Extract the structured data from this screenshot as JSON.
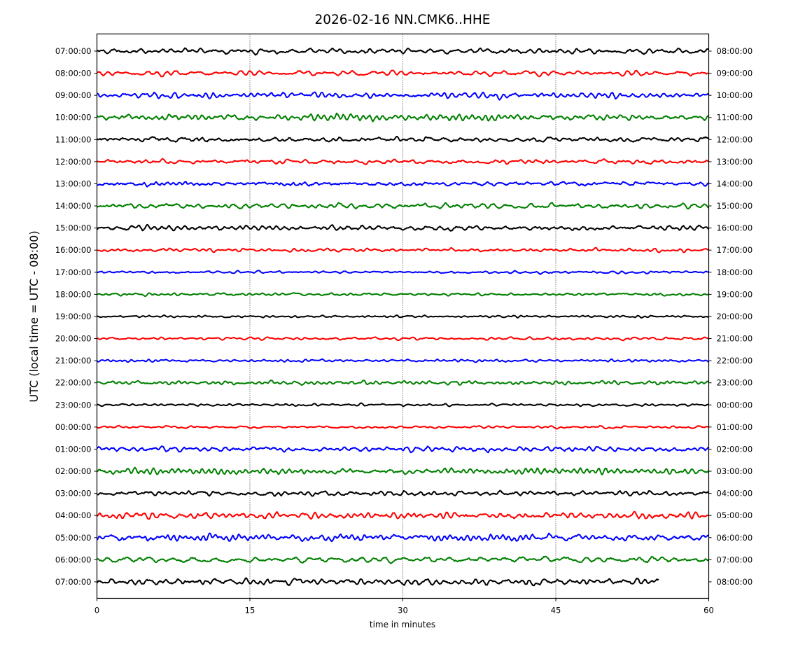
{
  "chart_data": {
    "type": "line",
    "title": "2026-02-16 NN.CMK6..HHE",
    "xlabel": "time in minutes",
    "ylabel": "UTC (local time = UTC - 08:00)",
    "xlim": [
      0,
      60
    ],
    "xticks": [
      "0",
      "15",
      "30",
      "45",
      "60"
    ],
    "xtick_values": [
      0,
      15,
      30,
      45,
      60
    ],
    "vertical_grid_at_minutes": [
      15,
      30,
      45
    ],
    "grid_style": "dotted",
    "left_labels": [
      "07:00:00",
      "08:00:00",
      "09:00:00",
      "10:00:00",
      "11:00:00",
      "12:00:00",
      "13:00:00",
      "14:00:00",
      "15:00:00",
      "16:00:00",
      "17:00:00",
      "18:00:00",
      "19:00:00",
      "20:00:00",
      "21:00:00",
      "22:00:00",
      "23:00:00",
      "00:00:00",
      "01:00:00",
      "02:00:00",
      "03:00:00",
      "04:00:00",
      "05:00:00",
      "06:00:00",
      "07:00:00"
    ],
    "right_labels": [
      "08:00:00",
      "09:00:00",
      "10:00:00",
      "11:00:00",
      "12:00:00",
      "13:00:00",
      "14:00:00",
      "15:00:00",
      "16:00:00",
      "17:00:00",
      "18:00:00",
      "19:00:00",
      "20:00:00",
      "21:00:00",
      "22:00:00",
      "23:00:00",
      "00:00:00",
      "01:00:00",
      "02:00:00",
      "03:00:00",
      "04:00:00",
      "05:00:00",
      "06:00:00",
      "07:00:00",
      "08:00:00"
    ],
    "trace_colors": [
      "#000000",
      "#ff0000",
      "#0000ff",
      "#008000"
    ],
    "traces": [
      {
        "amplitude": 0.9,
        "end_minute": 60
      },
      {
        "amplitude": 0.8,
        "end_minute": 60
      },
      {
        "amplitude": 0.9,
        "end_minute": 60
      },
      {
        "amplitude": 1.0,
        "end_minute": 60
      },
      {
        "amplitude": 0.9,
        "end_minute": 60
      },
      {
        "amplitude": 0.8,
        "end_minute": 60
      },
      {
        "amplitude": 0.9,
        "end_minute": 60
      },
      {
        "amplitude": 0.9,
        "end_minute": 60
      },
      {
        "amplitude": 0.9,
        "end_minute": 60
      },
      {
        "amplitude": 0.6,
        "end_minute": 60
      },
      {
        "amplitude": 0.5,
        "end_minute": 60
      },
      {
        "amplitude": 0.5,
        "end_minute": 60
      },
      {
        "amplitude": 0.4,
        "end_minute": 60
      },
      {
        "amplitude": 0.5,
        "end_minute": 60
      },
      {
        "amplitude": 0.4,
        "end_minute": 60
      },
      {
        "amplitude": 0.6,
        "end_minute": 60
      },
      {
        "amplitude": 0.4,
        "end_minute": 60
      },
      {
        "amplitude": 0.5,
        "end_minute": 60
      },
      {
        "amplitude": 0.9,
        "end_minute": 60
      },
      {
        "amplitude": 1.0,
        "end_minute": 60
      },
      {
        "amplitude": 0.9,
        "end_minute": 60
      },
      {
        "amplitude": 1.1,
        "end_minute": 60
      },
      {
        "amplitude": 1.1,
        "end_minute": 60
      },
      {
        "amplitude": 1.0,
        "end_minute": 60
      },
      {
        "amplitude": 1.1,
        "end_minute": 55.1
      }
    ]
  }
}
